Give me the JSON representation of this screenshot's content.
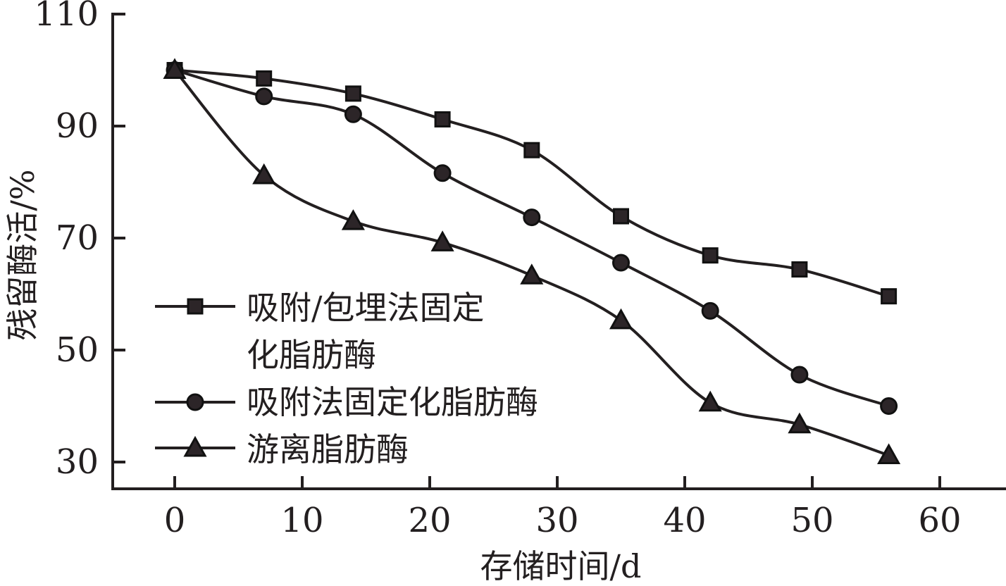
{
  "chart_data": {
    "type": "line",
    "title": "",
    "xlabel": "存储时间/d",
    "ylabel": "残留酶活/%",
    "xlim": [
      -5,
      65
    ],
    "ylim": [
      25,
      110
    ],
    "x_ticks": [
      0,
      10,
      20,
      30,
      40,
      50,
      60
    ],
    "y_ticks": [
      30,
      50,
      70,
      90,
      110
    ],
    "grid": false,
    "legend_position": "lower-left",
    "x": [
      0,
      7,
      14,
      21,
      28,
      35,
      42,
      49,
      56
    ],
    "series": [
      {
        "name": "吸附/包埋法固定化脂肪酶",
        "legend_lines": [
          "吸附/包埋法固定",
          "化脂肪酶"
        ],
        "marker": "square",
        "color": "#231f20",
        "values": [
          100,
          98.5,
          95.8,
          91.2,
          85.7,
          73.9,
          66.9,
          64.4,
          59.6
        ]
      },
      {
        "name": "吸附法固定化脂肪酶",
        "legend_lines": [
          "吸附法固定化脂肪酶"
        ],
        "marker": "circle",
        "color": "#231f20",
        "values": [
          100,
          95.3,
          92.1,
          81.6,
          73.7,
          65.6,
          57.0,
          45.6,
          40.0
        ]
      },
      {
        "name": "游离脂肪酶",
        "legend_lines": [
          "游离脂肪酶"
        ],
        "marker": "triangle",
        "color": "#231f20",
        "values": [
          100,
          81.2,
          73.0,
          69.2,
          63.3,
          55.3,
          40.6,
          36.7,
          31.2
        ]
      }
    ]
  }
}
